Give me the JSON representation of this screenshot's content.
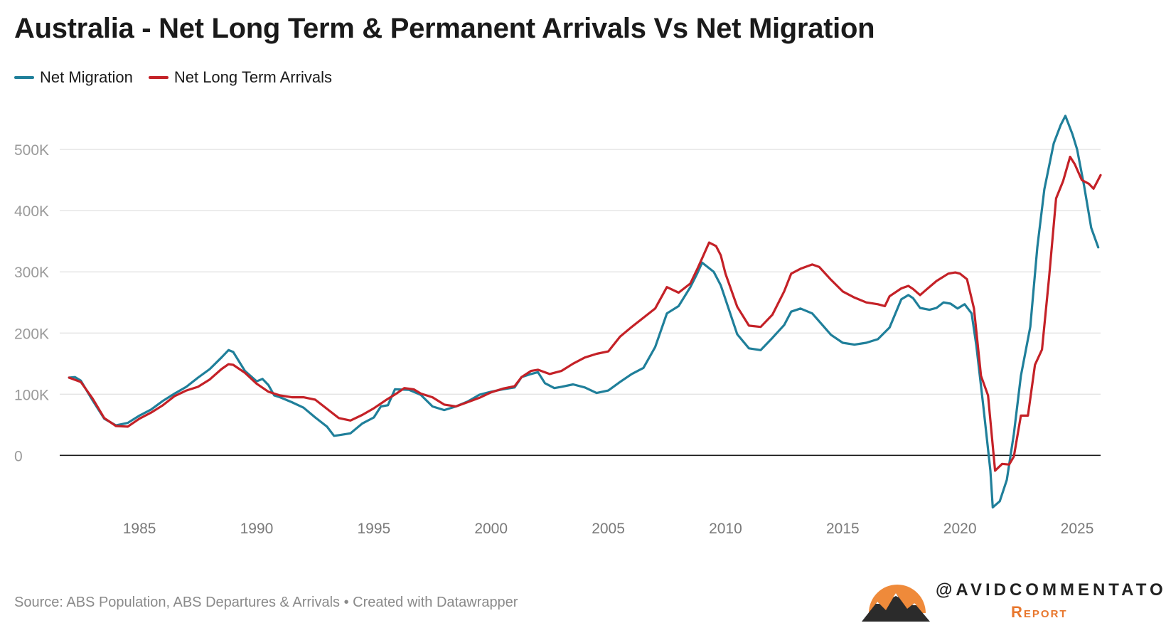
{
  "title": "Australia - Net Long Term & Permanent Arrivals Vs Net Migration",
  "source": "Source: ABS Population, ABS Departures & Arrivals • Created with Datawrapper",
  "brand": {
    "handle": "@AVIDCOMMENTATOR",
    "sub": "Report"
  },
  "chart_data": {
    "type": "line",
    "title": "Australia - Net Long Term & Permanent Arrivals Vs Net Migration",
    "xlabel": "",
    "ylabel": "",
    "xlim": [
      1981.6,
      2026.0
    ],
    "ylim": [
      -95000,
      570000
    ],
    "xticks": [
      1985,
      1990,
      1995,
      2000,
      2005,
      2010,
      2015,
      2020,
      2025
    ],
    "yticks": [
      0,
      100000,
      200000,
      300000,
      400000,
      500000
    ],
    "ytick_labels": [
      "0",
      "100K",
      "200K",
      "300K",
      "400K",
      "500K"
    ],
    "grid": true,
    "legend_position": "top-left",
    "series": [
      {
        "name": "Net Migration",
        "color": "#1f7f9a",
        "points": [
          [
            1982.0,
            127000
          ],
          [
            1982.25,
            128000
          ],
          [
            1982.5,
            122000
          ],
          [
            1983.0,
            90000
          ],
          [
            1983.5,
            60000
          ],
          [
            1984.0,
            49000
          ],
          [
            1984.5,
            53000
          ],
          [
            1985.0,
            65000
          ],
          [
            1985.5,
            75000
          ],
          [
            1986.0,
            89000
          ],
          [
            1986.5,
            101000
          ],
          [
            1987.0,
            112000
          ],
          [
            1987.5,
            127000
          ],
          [
            1988.0,
            141000
          ],
          [
            1988.5,
            160000
          ],
          [
            1988.8,
            172000
          ],
          [
            1989.0,
            169000
          ],
          [
            1989.5,
            138000
          ],
          [
            1990.0,
            121000
          ],
          [
            1990.25,
            125000
          ],
          [
            1990.5,
            115000
          ],
          [
            1990.75,
            98000
          ],
          [
            1991.0,
            95000
          ],
          [
            1991.5,
            87000
          ],
          [
            1992.0,
            78000
          ],
          [
            1992.5,
            62000
          ],
          [
            1993.0,
            47000
          ],
          [
            1993.3,
            32000
          ],
          [
            1993.5,
            33000
          ],
          [
            1994.0,
            36000
          ],
          [
            1994.5,
            52000
          ],
          [
            1995.0,
            62000
          ],
          [
            1995.3,
            80000
          ],
          [
            1995.6,
            82000
          ],
          [
            1995.9,
            108000
          ],
          [
            1996.5,
            107000
          ],
          [
            1997.0,
            99000
          ],
          [
            1997.5,
            80000
          ],
          [
            1998.0,
            74000
          ],
          [
            1998.5,
            80000
          ],
          [
            1999.0,
            88000
          ],
          [
            1999.5,
            99000
          ],
          [
            2000.0,
            104000
          ],
          [
            2000.5,
            108000
          ],
          [
            2001.0,
            111000
          ],
          [
            2001.3,
            128000
          ],
          [
            2001.7,
            133000
          ],
          [
            2002.0,
            136000
          ],
          [
            2002.3,
            118000
          ],
          [
            2002.7,
            110000
          ],
          [
            2003.0,
            112000
          ],
          [
            2003.5,
            116000
          ],
          [
            2004.0,
            111000
          ],
          [
            2004.5,
            102000
          ],
          [
            2005.0,
            106000
          ],
          [
            2005.5,
            120000
          ],
          [
            2006.0,
            133000
          ],
          [
            2006.5,
            143000
          ],
          [
            2007.0,
            177000
          ],
          [
            2007.5,
            232000
          ],
          [
            2008.0,
            244000
          ],
          [
            2008.5,
            275000
          ],
          [
            2008.8,
            298000
          ],
          [
            2009.0,
            315000
          ],
          [
            2009.5,
            300000
          ],
          [
            2009.8,
            278000
          ],
          [
            2010.0,
            255000
          ],
          [
            2010.5,
            198000
          ],
          [
            2011.0,
            175000
          ],
          [
            2011.5,
            172000
          ],
          [
            2012.0,
            192000
          ],
          [
            2012.5,
            213000
          ],
          [
            2012.8,
            235000
          ],
          [
            2013.2,
            240000
          ],
          [
            2013.7,
            232000
          ],
          [
            2014.0,
            219000
          ],
          [
            2014.5,
            197000
          ],
          [
            2015.0,
            184000
          ],
          [
            2015.5,
            181000
          ],
          [
            2016.0,
            184000
          ],
          [
            2016.5,
            190000
          ],
          [
            2017.0,
            209000
          ],
          [
            2017.5,
            255000
          ],
          [
            2017.8,
            262000
          ],
          [
            2018.0,
            257000
          ],
          [
            2018.3,
            241000
          ],
          [
            2018.7,
            238000
          ],
          [
            2019.0,
            241000
          ],
          [
            2019.3,
            250000
          ],
          [
            2019.6,
            248000
          ],
          [
            2019.9,
            240000
          ],
          [
            2020.2,
            247000
          ],
          [
            2020.5,
            232000
          ],
          [
            2020.7,
            180000
          ],
          [
            2021.0,
            80000
          ],
          [
            2021.3,
            -25000
          ],
          [
            2021.4,
            -85000
          ],
          [
            2021.7,
            -75000
          ],
          [
            2022.0,
            -40000
          ],
          [
            2022.3,
            35000
          ],
          [
            2022.6,
            130000
          ],
          [
            2023.0,
            210000
          ],
          [
            2023.3,
            340000
          ],
          [
            2023.6,
            435000
          ],
          [
            2024.0,
            510000
          ],
          [
            2024.3,
            540000
          ],
          [
            2024.5,
            555000
          ],
          [
            2024.8,
            525000
          ],
          [
            2025.0,
            500000
          ],
          [
            2025.3,
            440000
          ],
          [
            2025.6,
            372000
          ],
          [
            2025.9,
            340000
          ]
        ]
      },
      {
        "name": "Net Long Term Arrivals",
        "color": "#c42127",
        "points": [
          [
            1982.0,
            127000
          ],
          [
            1982.5,
            120000
          ],
          [
            1983.0,
            93000
          ],
          [
            1983.5,
            61000
          ],
          [
            1984.0,
            48000
          ],
          [
            1984.5,
            47000
          ],
          [
            1985.0,
            60000
          ],
          [
            1985.5,
            70000
          ],
          [
            1986.0,
            82000
          ],
          [
            1986.5,
            97000
          ],
          [
            1987.0,
            106000
          ],
          [
            1987.5,
            112000
          ],
          [
            1988.0,
            124000
          ],
          [
            1988.5,
            141000
          ],
          [
            1988.8,
            149000
          ],
          [
            1989.0,
            148000
          ],
          [
            1989.5,
            135000
          ],
          [
            1990.0,
            117000
          ],
          [
            1990.5,
            104000
          ],
          [
            1991.0,
            98000
          ],
          [
            1991.5,
            95000
          ],
          [
            1992.0,
            95000
          ],
          [
            1992.5,
            91000
          ],
          [
            1993.0,
            76000
          ],
          [
            1993.5,
            61000
          ],
          [
            1994.0,
            57000
          ],
          [
            1994.5,
            66000
          ],
          [
            1995.0,
            77000
          ],
          [
            1995.5,
            90000
          ],
          [
            1996.0,
            102000
          ],
          [
            1996.3,
            110000
          ],
          [
            1996.7,
            108000
          ],
          [
            1997.0,
            101000
          ],
          [
            1997.5,
            95000
          ],
          [
            1998.0,
            83000
          ],
          [
            1998.5,
            80000
          ],
          [
            1999.0,
            87000
          ],
          [
            1999.5,
            94000
          ],
          [
            2000.0,
            103000
          ],
          [
            2000.5,
            109000
          ],
          [
            2001.0,
            113000
          ],
          [
            2001.3,
            128000
          ],
          [
            2001.7,
            138000
          ],
          [
            2002.0,
            140000
          ],
          [
            2002.5,
            133000
          ],
          [
            2003.0,
            138000
          ],
          [
            2003.5,
            150000
          ],
          [
            2004.0,
            160000
          ],
          [
            2004.5,
            166000
          ],
          [
            2005.0,
            170000
          ],
          [
            2005.5,
            194000
          ],
          [
            2006.0,
            210000
          ],
          [
            2006.5,
            225000
          ],
          [
            2007.0,
            240000
          ],
          [
            2007.5,
            275000
          ],
          [
            2008.0,
            266000
          ],
          [
            2008.5,
            281000
          ],
          [
            2008.8,
            305000
          ],
          [
            2009.0,
            322000
          ],
          [
            2009.3,
            348000
          ],
          [
            2009.6,
            342000
          ],
          [
            2009.8,
            327000
          ],
          [
            2010.0,
            297000
          ],
          [
            2010.5,
            243000
          ],
          [
            2011.0,
            212000
          ],
          [
            2011.5,
            210000
          ],
          [
            2012.0,
            230000
          ],
          [
            2012.5,
            268000
          ],
          [
            2012.8,
            297000
          ],
          [
            2013.2,
            305000
          ],
          [
            2013.7,
            312000
          ],
          [
            2014.0,
            308000
          ],
          [
            2014.5,
            287000
          ],
          [
            2015.0,
            268000
          ],
          [
            2015.5,
            258000
          ],
          [
            2016.0,
            250000
          ],
          [
            2016.5,
            247000
          ],
          [
            2016.8,
            244000
          ],
          [
            2017.0,
            260000
          ],
          [
            2017.5,
            273000
          ],
          [
            2017.8,
            277000
          ],
          [
            2018.0,
            272000
          ],
          [
            2018.3,
            262000
          ],
          [
            2018.6,
            272000
          ],
          [
            2019.0,
            285000
          ],
          [
            2019.5,
            297000
          ],
          [
            2019.8,
            299000
          ],
          [
            2020.0,
            297000
          ],
          [
            2020.3,
            288000
          ],
          [
            2020.6,
            240000
          ],
          [
            2020.9,
            130000
          ],
          [
            2021.2,
            98000
          ],
          [
            2021.5,
            -25000
          ],
          [
            2021.8,
            -14000
          ],
          [
            2022.1,
            -15000
          ],
          [
            2022.3,
            -2000
          ],
          [
            2022.6,
            65000
          ],
          [
            2022.9,
            65000
          ],
          [
            2023.2,
            148000
          ],
          [
            2023.5,
            173000
          ],
          [
            2023.8,
            290000
          ],
          [
            2024.1,
            420000
          ],
          [
            2024.4,
            448000
          ],
          [
            2024.7,
            488000
          ],
          [
            2024.9,
            476000
          ],
          [
            2025.2,
            450000
          ],
          [
            2025.5,
            444000
          ],
          [
            2025.7,
            436000
          ],
          [
            2026.0,
            458000
          ]
        ]
      }
    ]
  }
}
